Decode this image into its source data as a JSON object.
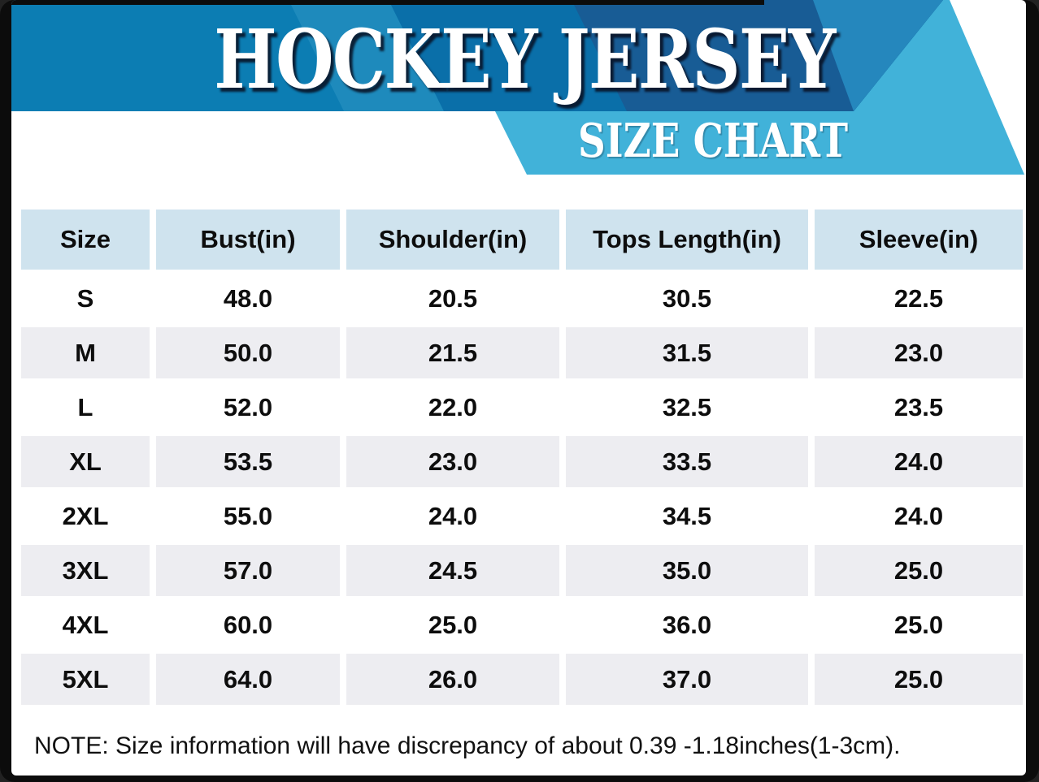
{
  "banner": {
    "title": "HOCKEY JERSEY",
    "subtitle": "SIZE CHART"
  },
  "colors": {
    "frame": "#0c0c0c",
    "banner_main": "#0c7db3",
    "banner_light_wedge": "#1e8abc",
    "banner_dark_band": "#0a6fa9",
    "banner_navy_band": "#185c95",
    "banner_stripe": "#2587bd",
    "ribbon_light": "#41b2d9",
    "table_header_bg": "#cfe3ee",
    "table_alt_row_bg": "#ededf1",
    "text": "#0d0d0d"
  },
  "note": "NOTE: Size information will have discrepancy of about 0.39 -1.18inches(1-3cm).",
  "chart_data": {
    "type": "table",
    "title": "HOCKEY JERSEY",
    "subtitle": "SIZE CHART",
    "units": "inches",
    "columns": [
      "Size",
      "Bust(in)",
      "Shoulder(in)",
      "Tops Length(in)",
      "Sleeve(in)"
    ],
    "rows": [
      {
        "cells": [
          "S",
          "48.0",
          "20.5",
          "30.5",
          "22.5"
        ]
      },
      {
        "cells": [
          "M",
          "50.0",
          "21.5",
          "31.5",
          "23.0"
        ]
      },
      {
        "cells": [
          "L",
          "52.0",
          "22.0",
          "32.5",
          "23.5"
        ]
      },
      {
        "cells": [
          "XL",
          "53.5",
          "23.0",
          "33.5",
          "24.0"
        ]
      },
      {
        "cells": [
          "2XL",
          "55.0",
          "24.0",
          "34.5",
          "24.0"
        ]
      },
      {
        "cells": [
          "3XL",
          "57.0",
          "24.5",
          "35.0",
          "25.0"
        ]
      },
      {
        "cells": [
          "4XL",
          "60.0",
          "25.0",
          "36.0",
          "25.0"
        ]
      },
      {
        "cells": [
          "5XL",
          "64.0",
          "26.0",
          "37.0",
          "25.0"
        ]
      }
    ]
  }
}
